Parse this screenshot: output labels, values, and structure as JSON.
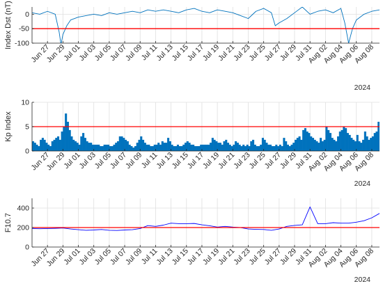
{
  "chart_data": [
    {
      "type": "line",
      "ylabel": "Index Dst (nT)",
      "ylim": [
        -100,
        25
      ],
      "yticks": [
        -100,
        -50,
        0
      ],
      "xlim": [
        "2024-06-25",
        "2024-08-09"
      ],
      "xticklabels": [
        "Jun 27",
        "Jun 29",
        "Jul 01",
        "Jul 03",
        "Jul 05",
        "Jul 07",
        "Jul 09",
        "Jul 11",
        "Jul 13",
        "Jul 15",
        "Jul 17",
        "Jul 19",
        "Jul 21",
        "Jul 23",
        "Jul 25",
        "Jul 27",
        "Jul 29",
        "Jul 31",
        "Aug 02",
        "Aug 04",
        "Aug 06",
        "Aug 08"
      ],
      "xaxis_year": "2024",
      "grid": true,
      "series": [
        {
          "color": "#0072bd",
          "x": [
            "2024-06-25",
            "2024-06-26",
            "2024-06-27",
            "2024-06-28",
            "2024-06-28T12",
            "2024-06-28T18",
            "2024-06-29",
            "2024-06-29T12",
            "2024-06-30",
            "2024-07-01",
            "2024-07-02",
            "2024-07-03",
            "2024-07-04",
            "2024-07-05",
            "2024-07-06",
            "2024-07-07",
            "2024-07-08",
            "2024-07-09",
            "2024-07-10",
            "2024-07-11",
            "2024-07-12",
            "2024-07-13",
            "2024-07-14",
            "2024-07-15",
            "2024-07-16",
            "2024-07-17",
            "2024-07-18",
            "2024-07-19",
            "2024-07-20",
            "2024-07-21",
            "2024-07-22",
            "2024-07-23",
            "2024-07-24",
            "2024-07-25",
            "2024-07-26",
            "2024-07-26T12",
            "2024-07-27",
            "2024-07-28",
            "2024-07-29",
            "2024-07-30",
            "2024-07-31",
            "2024-08-01",
            "2024-08-02",
            "2024-08-03",
            "2024-08-04",
            "2024-08-04T12",
            "2024-08-05",
            "2024-08-05T12",
            "2024-08-06",
            "2024-08-07",
            "2024-08-08",
            "2024-08-09"
          ],
          "values": [
            5,
            0,
            10,
            0,
            -60,
            -105,
            -70,
            -40,
            -20,
            -10,
            -5,
            0,
            -5,
            5,
            0,
            5,
            10,
            5,
            15,
            10,
            15,
            10,
            5,
            15,
            20,
            10,
            5,
            15,
            10,
            5,
            -5,
            -15,
            10,
            20,
            5,
            -40,
            -30,
            -15,
            5,
            25,
            0,
            10,
            15,
            5,
            20,
            -30,
            -100,
            -50,
            -20,
            0,
            10,
            15
          ]
        }
      ],
      "reference_line": {
        "y": -50,
        "color": "#ff0000"
      }
    },
    {
      "type": "bar",
      "ylabel": "Kp Index",
      "ylim": [
        0,
        10
      ],
      "yticks": [
        0,
        5,
        10
      ],
      "xlim": [
        "2024-06-25",
        "2024-08-09"
      ],
      "xticklabels": [
        "Jun 27",
        "Jun 29",
        "Jul 01",
        "Jul 03",
        "Jul 05",
        "Jul 07",
        "Jul 09",
        "Jul 11",
        "Jul 13",
        "Jul 15",
        "Jul 17",
        "Jul 19",
        "Jul 21",
        "Jul 23",
        "Jul 25",
        "Jul 27",
        "Jul 29",
        "Jul 31",
        "Aug 02",
        "Aug 04",
        "Aug 06",
        "Aug 08"
      ],
      "xaxis_year": "2024",
      "grid": true,
      "series": [
        {
          "color": "#0072bd",
          "x_start": "2024-06-25",
          "step_days": 0.25,
          "values": [
            2.0,
            1.7,
            1.3,
            1.0,
            2.3,
            2.7,
            2.3,
            1.7,
            1.3,
            1.0,
            2.0,
            2.3,
            2.7,
            3.0,
            2.3,
            4.0,
            5.0,
            7.7,
            6.0,
            4.3,
            3.0,
            2.3,
            2.0,
            1.7,
            1.3,
            3.0,
            3.7,
            2.7,
            2.0,
            1.7,
            1.7,
            1.3,
            1.3,
            1.3,
            1.3,
            1.0,
            1.0,
            1.3,
            1.3,
            1.3,
            1.0,
            1.0,
            1.3,
            1.7,
            2.0,
            3.0,
            3.0,
            2.7,
            2.3,
            2.0,
            1.3,
            1.0,
            0.7,
            1.0,
            1.7,
            2.3,
            3.0,
            2.3,
            1.7,
            1.3,
            1.3,
            1.0,
            1.0,
            1.3,
            1.3,
            1.7,
            1.3,
            2.0,
            1.7,
            1.7,
            2.7,
            2.0,
            1.3,
            1.0,
            1.0,
            1.3,
            1.0,
            1.0,
            1.3,
            1.7,
            2.0,
            1.7,
            1.3,
            1.3,
            1.0,
            1.0,
            1.0,
            1.3,
            1.3,
            1.3,
            1.3,
            1.3,
            1.7,
            2.7,
            2.3,
            2.0,
            1.7,
            1.7,
            1.3,
            2.0,
            2.3,
            1.7,
            1.3,
            1.0,
            1.3,
            2.0,
            1.7,
            1.3,
            1.0,
            1.3,
            1.0,
            1.3,
            1.0,
            2.0,
            2.3,
            1.3,
            1.0,
            1.0,
            1.3,
            2.7,
            2.3,
            1.7,
            1.3,
            1.3,
            1.0,
            1.0,
            1.3,
            1.0,
            1.3,
            1.0,
            2.7,
            2.0,
            1.3,
            1.0,
            1.3,
            1.7,
            2.3,
            2.7,
            3.0,
            2.3,
            4.3,
            4.7,
            4.0,
            3.7,
            3.0,
            2.7,
            2.3,
            2.0,
            1.7,
            2.7,
            2.0,
            2.3,
            5.0,
            4.3,
            3.7,
            2.7,
            2.3,
            2.0,
            3.0,
            4.0,
            4.3,
            5.0,
            4.7,
            3.7,
            3.3,
            2.7,
            2.3,
            2.0,
            3.3,
            2.0,
            1.7,
            2.3,
            4.0,
            3.0,
            2.3,
            2.7,
            3.0,
            3.7,
            4.0,
            6.0,
            5.7,
            4.0,
            3.0,
            2.3,
            2.0,
            1.7,
            1.3,
            1.0,
            1.3,
            1.7,
            2.0,
            2.3,
            2.0,
            2.3,
            1.7,
            1.3
          ]
        }
      ],
      "reference_line": {
        "y": 5,
        "color": "#ff0000"
      }
    },
    {
      "type": "line",
      "ylabel": "F10.7",
      "ylim": [
        0,
        500
      ],
      "yticks": [
        0,
        200,
        400
      ],
      "xlim": [
        "2024-06-25",
        "2024-08-09"
      ],
      "xticklabels": [
        "Jun 27",
        "Jun 29",
        "Jul 01",
        "Jul 03",
        "Jul 05",
        "Jul 07",
        "Jul 09",
        "Jul 11",
        "Jul 13",
        "Jul 15",
        "Jul 17",
        "Jul 19",
        "Jul 21",
        "Jul 23",
        "Jul 25",
        "Jul 27",
        "Jul 29",
        "Jul 31",
        "Aug 02",
        "Aug 04",
        "Aug 06",
        "Aug 08"
      ],
      "xaxis_year": "2024",
      "grid": true,
      "series": [
        {
          "color": "#0000ff",
          "x": [
            "2024-06-25",
            "2024-06-26",
            "2024-06-27",
            "2024-06-28",
            "2024-06-29",
            "2024-06-30",
            "2024-07-01",
            "2024-07-02",
            "2024-07-03",
            "2024-07-04",
            "2024-07-05",
            "2024-07-06",
            "2024-07-07",
            "2024-07-08",
            "2024-07-09",
            "2024-07-10",
            "2024-07-11",
            "2024-07-12",
            "2024-07-13",
            "2024-07-14",
            "2024-07-15",
            "2024-07-16",
            "2024-07-17",
            "2024-07-18",
            "2024-07-19",
            "2024-07-20",
            "2024-07-21",
            "2024-07-22",
            "2024-07-23",
            "2024-07-24",
            "2024-07-25",
            "2024-07-26",
            "2024-07-27",
            "2024-07-28",
            "2024-07-29",
            "2024-07-30",
            "2024-07-31",
            "2024-08-01",
            "2024-08-02",
            "2024-08-03",
            "2024-08-04",
            "2024-08-05",
            "2024-08-06",
            "2024-08-07",
            "2024-08-08",
            "2024-08-09"
          ],
          "values": [
            190,
            188,
            190,
            192,
            195,
            185,
            178,
            172,
            175,
            180,
            172,
            170,
            175,
            178,
            190,
            220,
            212,
            225,
            245,
            240,
            240,
            242,
            228,
            218,
            205,
            212,
            205,
            200,
            185,
            182,
            180,
            172,
            185,
            212,
            222,
            228,
            412,
            240,
            240,
            250,
            245,
            245,
            255,
            270,
            300,
            345
          ]
        }
      ],
      "reference_line": {
        "y": 200,
        "color": "#ff0000"
      }
    }
  ]
}
